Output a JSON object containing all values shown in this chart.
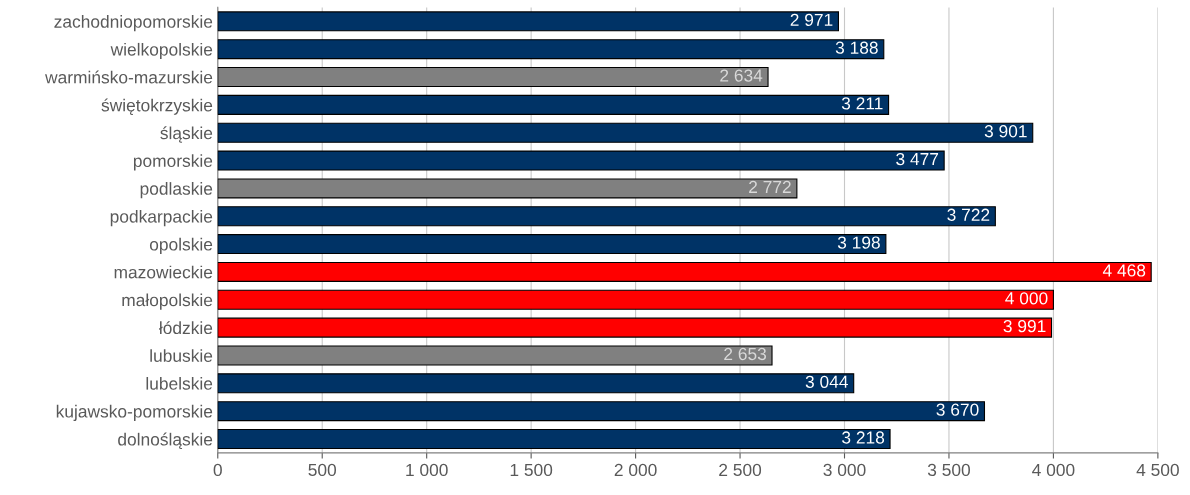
{
  "chart_data": {
    "type": "bar",
    "orientation": "horizontal",
    "categories": [
      "zachodniopomorskie",
      "wielkopolskie",
      "warmińsko-mazurskie",
      "świętokrzyskie",
      "śląskie",
      "pomorskie",
      "podlaskie",
      "podkarpackie",
      "opolskie",
      "mazowieckie",
      "małopolskie",
      "łódzkie",
      "lubuskie",
      "lubelskie",
      "kujawsko-pomorskie",
      "dolnośląskie"
    ],
    "values": [
      2971,
      3188,
      2634,
      3211,
      3901,
      3477,
      2772,
      3722,
      3198,
      4468,
      4000,
      3991,
      2653,
      3044,
      3670,
      3218
    ],
    "colors": [
      "#003366",
      "#003366",
      "#808080",
      "#003366",
      "#003366",
      "#003366",
      "#808080",
      "#003366",
      "#003366",
      "#ff0000",
      "#ff0000",
      "#ff0000",
      "#808080",
      "#003366",
      "#003366",
      "#003366"
    ],
    "value_labels": [
      "2 971",
      "3 188",
      "2 634",
      "3 211",
      "3 901",
      "3 477",
      "2 772",
      "3 722",
      "3 198",
      "4 468",
      "4 000",
      "3 991",
      "2 653",
      "3 044",
      "3 670",
      "3 218"
    ],
    "xlim": [
      0,
      4500
    ],
    "xticks": [
      0,
      500,
      {
        "value": 1000,
        "label": "1 000"
      },
      {
        "value": 1500,
        "label": "1 500"
      },
      {
        "value": 2000,
        "label": "2 000"
      },
      {
        "value": 2500,
        "label": "2 500"
      },
      {
        "value": 3000,
        "label": "3 000"
      },
      {
        "value": 3500,
        "label": "3 500"
      },
      {
        "value": 4000,
        "label": "4 000"
      },
      {
        "value": 4500,
        "label": "4 500"
      }
    ],
    "grid": "x",
    "legend": false
  }
}
